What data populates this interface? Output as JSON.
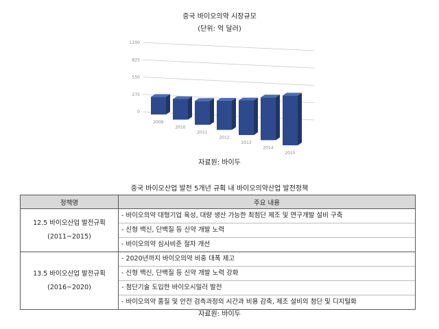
{
  "chart_data": {
    "type": "bar",
    "title": "중국 바이오의약 시장규모",
    "subtitle": "(단위: 억 달러)",
    "categories": [
      "2009",
      "2010",
      "2011",
      "2012",
      "2013",
      "2014",
      "2015"
    ],
    "values": [
      325,
      380,
      440,
      540,
      640,
      790,
      920
    ],
    "yticks": [
      "1100",
      "825",
      "550",
      "275",
      "0"
    ],
    "ylim": [
      0,
      1100
    ],
    "grid": true,
    "style": "3d",
    "bar_color": "#2e4a8c",
    "source": "자료원: 바이두"
  },
  "table": {
    "title": "중국 바이오산업 발전 5개년 규획 내 바이오의약산업 발전정책",
    "headers": [
      "정책명",
      "주요 내용"
    ],
    "rows": [
      {
        "policy_line1": "12.5 바이오산업 발전규획",
        "policy_line2": "(2011~2015)",
        "items": [
          "- 바이오의약 대형기업 육성, 대량 생산 가능한 최첨단 제조 및 연구개발 설비 구축",
          "- 신형 백신, 단백질 등 신약 개발 노력",
          "- 바이오의약 심사비준 절차 개선"
        ]
      },
      {
        "policy_line1": "13.5 바이오산업 발전규획",
        "policy_line2": "(2016~2020)",
        "items": [
          "- 2020년까지 바이오의약 비중 대폭 제고",
          "- 신형 백신, 단백질 등 신약 개발 노력 강화",
          "- 첨단기술 도입한 바이오시밀러 발전",
          "- 바이오의약 품질 및 안전 검측과정의 시간과 비용 감축, 제조 설비의 첨단 및 디지털화"
        ]
      }
    ],
    "source": "자료원: 바이두"
  }
}
